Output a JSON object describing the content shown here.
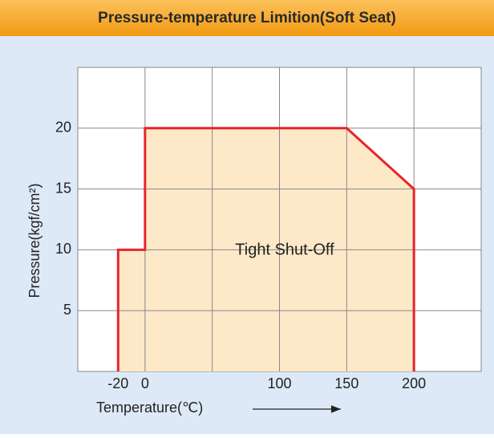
{
  "chart_data": {
    "type": "area",
    "title": "Pressure-temperature Limition(Soft Seat)",
    "xlabel": "Temperature(℃)",
    "ylabel": "Pressure(kgf/cm²)",
    "annotation": "Tight Shut-Off",
    "x": [
      -20,
      -20,
      0,
      0,
      150,
      200,
      200
    ],
    "values": [
      0,
      10,
      10,
      20,
      20,
      15,
      0
    ],
    "color": "#e8232a",
    "fill": "#fde9c8",
    "xlim": [
      -50,
      250
    ],
    "xticks": [
      -20,
      0,
      100,
      150,
      200
    ],
    "xgrid": [
      0,
      50,
      100,
      150,
      200
    ],
    "ylim": [
      0,
      25
    ],
    "yticks": [
      5,
      10,
      15,
      20
    ],
    "grid": true
  }
}
